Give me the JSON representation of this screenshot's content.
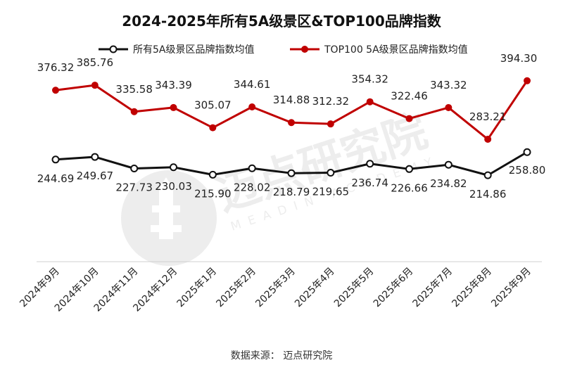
{
  "chart_data": {
    "type": "line",
    "title": "2024-2025年所有5A级景区&TOP100品牌指数",
    "categories": [
      "2024年9月",
      "2024年10月",
      "2024年11月",
      "2024年12月",
      "2025年1月",
      "2025年2月",
      "2025年3月",
      "2025年4月",
      "2025年5月",
      "2025年6月",
      "2025年7月",
      "2025年8月",
      "2025年9月"
    ],
    "series": [
      {
        "name": "所有5A级景区品牌指数均值",
        "color": "#111111",
        "values": [
          244.69,
          249.67,
          227.73,
          230.03,
          215.9,
          228.02,
          218.79,
          219.65,
          236.74,
          226.66,
          234.82,
          214.86,
          258.8
        ],
        "labels": [
          "244.69",
          "249.67",
          "227.73",
          "230.03",
          "215.90",
          "228.02",
          "218.79",
          "219.65",
          "236.74",
          "226.66",
          "234.82",
          "214.86",
          "258.80"
        ]
      },
      {
        "name": "TOP100 5A级景区品牌指数均值",
        "color": "#c00000",
        "values": [
          376.32,
          385.76,
          335.58,
          343.39,
          305.07,
          344.61,
          314.88,
          312.32,
          354.32,
          322.46,
          343.32,
          283.21,
          394.3
        ],
        "labels": [
          "376.32",
          "385.76",
          "335.58",
          "343.39",
          "305.07",
          "344.61",
          "314.88",
          "312.32",
          "354.32",
          "322.46",
          "343.32",
          "283.21",
          "394.30"
        ]
      }
    ],
    "legend_position": "top",
    "grid": false,
    "source_text": "数据来源：  迈点研究院"
  },
  "watermark": {
    "text": "迈点研究院",
    "subtext": "MEADIN ACADEMY"
  }
}
